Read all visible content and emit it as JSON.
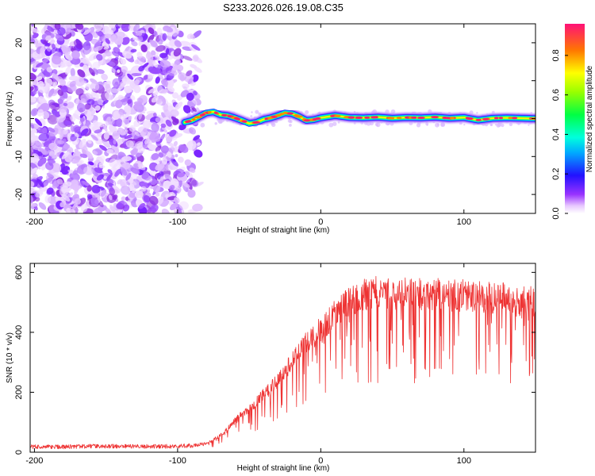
{
  "title": "S233.2026.026.19.08.C35",
  "chart_data": [
    {
      "type": "heatmap",
      "name": "spectrogram",
      "xlabel": "Height of straight line (km)",
      "ylabel": "Frequency (Hz)",
      "xlim": [
        -203,
        150
      ],
      "ylim": [
        -25,
        25
      ],
      "xticks": [
        "-200",
        "-100",
        "0",
        "100"
      ],
      "xtick_values": [
        -200,
        -100,
        0,
        100
      ],
      "yticks": [
        "20",
        "10",
        "0",
        "-10",
        "-20"
      ],
      "ytick_values": [
        20,
        10,
        0,
        -10,
        -20
      ],
      "noise_region_x": [
        -203,
        -85
      ],
      "line_start_x": -95,
      "ridge": {
        "x": [
          -95,
          -90,
          -85,
          -80,
          -75,
          -70,
          -65,
          -60,
          -55,
          -50,
          -45,
          -40,
          -35,
          -30,
          -25,
          -20,
          -15,
          -10,
          -5,
          0,
          10,
          20,
          30,
          40,
          50,
          60,
          70,
          80,
          90,
          100,
          110,
          120,
          130,
          140,
          150
        ],
        "freq": [
          -1.0,
          -0.5,
          0.5,
          1.5,
          1.8,
          1.0,
          0.8,
          0.2,
          -0.5,
          -1.3,
          -1.0,
          -0.2,
          0.2,
          0.8,
          1.5,
          1.3,
          0.5,
          -0.5,
          -0.3,
          0.2,
          0.8,
          0.3,
          0.2,
          0.4,
          0.1,
          0.3,
          0.2,
          0.4,
          0.1,
          0.3,
          -0.4,
          0.1,
          0.2,
          0.1,
          0.0
        ]
      },
      "colorbar": {
        "label": "Normalized spectral amplitude",
        "ticks": [
          "0.0",
          "0.2",
          "0.4",
          "0.6",
          "0.8"
        ],
        "tick_values": [
          0.0,
          0.2,
          0.4,
          0.6,
          0.8
        ],
        "range": [
          0.0,
          0.96
        ]
      }
    },
    {
      "type": "line",
      "name": "snr",
      "xlabel": "Height of straight line (km)",
      "ylabel": "SNR (10 * v/v)",
      "xlim": [
        -203,
        150
      ],
      "ylim": [
        0,
        630
      ],
      "xticks": [
        "-200",
        "-100",
        "0",
        "100"
      ],
      "xtick_values": [
        -200,
        -100,
        0,
        100
      ],
      "yticks": [
        "0",
        "200",
        "400",
        "600"
      ],
      "ytick_values": [
        0,
        200,
        400,
        600
      ],
      "series": [
        {
          "name": "SNR",
          "color": "#ee3333",
          "x": [
            -203,
            -180,
            -160,
            -140,
            -120,
            -100,
            -90,
            -80,
            -75,
            -70,
            -65,
            -60,
            -55,
            -50,
            -45,
            -40,
            -35,
            -30,
            -25,
            -20,
            -15,
            -10,
            -5,
            0,
            5,
            10,
            15,
            20,
            25,
            30,
            40,
            50,
            60,
            70,
            80,
            90,
            100,
            110,
            120,
            130,
            140,
            150
          ],
          "y": [
            18,
            18,
            20,
            20,
            19,
            20,
            22,
            28,
            40,
            55,
            75,
            100,
            120,
            140,
            160,
            185,
            205,
            230,
            260,
            290,
            320,
            350,
            375,
            395,
            415,
            440,
            460,
            480,
            495,
            505,
            510,
            510,
            505,
            505,
            505,
            500,
            500,
            495,
            495,
            490,
            480,
            480
          ]
        }
      ]
    }
  ]
}
